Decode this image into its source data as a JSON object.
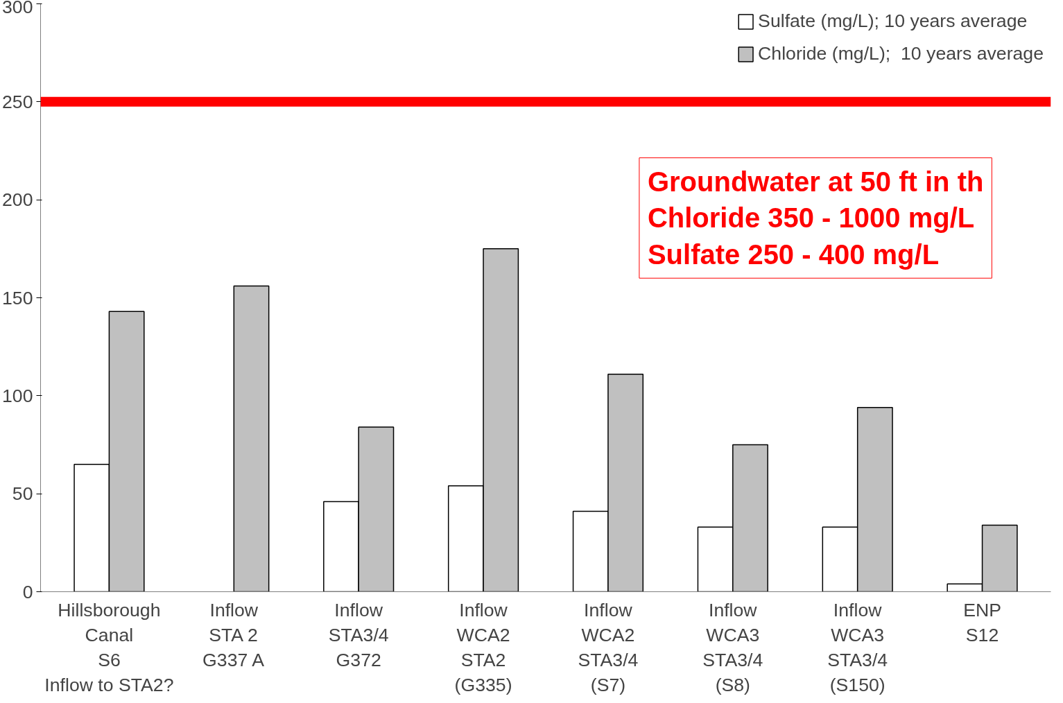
{
  "chart_data": {
    "type": "bar",
    "categories": [
      "Hillsborough\nCanal\nS6\nInflow to STA2?",
      "Inflow\nSTA 2\nG337 A",
      "Inflow\nSTA3/4\nG372",
      "Inflow\nWCA2\nSTA2\n(G335)",
      "Inflow\nWCA2\nSTA3/4\n(S7)",
      "Inflow\nWCA3\nSTA3/4\n(S8)",
      "Inflow\nWCA3\nSTA3/4\n(S150)",
      "ENP\nS12"
    ],
    "series": [
      {
        "name": "Sulfate (mg/L); 10 years average",
        "color": "#ffffff",
        "values": [
          65,
          null,
          46,
          54,
          41,
          33,
          33,
          4
        ]
      },
      {
        "name": "Chloride (mg/L);  10 years average",
        "color": "#c0c0c0",
        "values": [
          143,
          156,
          84,
          175,
          111,
          75,
          94,
          34
        ]
      }
    ],
    "ylim": [
      0,
      300
    ],
    "yticks": [
      0,
      50,
      100,
      150,
      200,
      250,
      300
    ],
    "ref_lines": [
      {
        "axis": "y",
        "value": 250,
        "color": "#ff0000"
      }
    ],
    "annotations": [
      "Groundwater at 50 ft in th",
      "Chloride 350 - 1000 mg/L",
      "Sulfate 250 - 400 mg/L"
    ],
    "grid": false,
    "legend": "top right"
  }
}
